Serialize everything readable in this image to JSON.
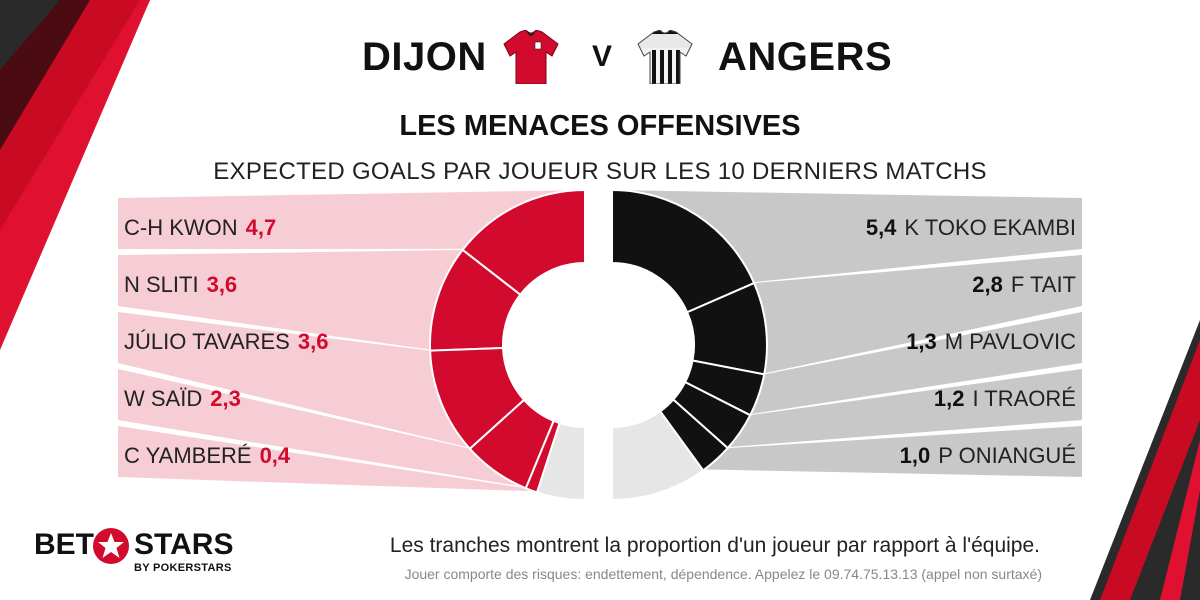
{
  "header": {
    "home_team": "DIJON",
    "vs": "V",
    "away_team": "ANGERS",
    "home_kit_icon": "red-football-shirt-icon",
    "away_kit_icon": "black-white-striped-shirt-icon"
  },
  "title": "LES MENACES OFFENSIVES",
  "subtitle": "EXPECTED GOALS PAR JOUEUR SUR LES 10 DERNIERS MATCHS",
  "colors": {
    "home": "#d20a2e",
    "home_bg": "#f6cdd4",
    "away": "#111111",
    "away_bg": "#c8c8c8",
    "rest": "#e6e6e6"
  },
  "chart_data": [
    {
      "type": "pie",
      "team": "DIJON",
      "categories": [
        "C-H KWON",
        "N SLITI",
        "JÚLIO TAVARES",
        "W SAÏD",
        "C YAMBERÉ"
      ],
      "labels": [
        "4,7",
        "3,6",
        "3,6",
        "2,3",
        "0,4"
      ],
      "values": [
        4.7,
        3.6,
        3.6,
        2.3,
        0.4
      ],
      "rest_fraction": 0.1
    },
    {
      "type": "pie",
      "team": "ANGERS",
      "categories": [
        "K TOKO EKAMBI",
        "F TAIT",
        "M PAVLOVIC",
        "I TRAORÉ",
        "P ONIANGUÉ"
      ],
      "labels": [
        "5,4",
        "2,8",
        "1,3",
        "1,2",
        "1,0"
      ],
      "values": [
        5.4,
        2.8,
        1.3,
        1.2,
        1.0
      ],
      "rest_fraction": 0.2
    }
  ],
  "footnote": "Les tranches montrent la proportion d'un joueur par rapport à l'équipe.",
  "disclaimer": "Jouer comporte des risques: endettement, dépendence. Appelez le 09.74.75.13.13  (appel non surtaxé)",
  "logo": {
    "bet": "BET",
    "stars": "STARS",
    "sub": "BY POKERSTARS",
    "icon": "star-icon"
  }
}
